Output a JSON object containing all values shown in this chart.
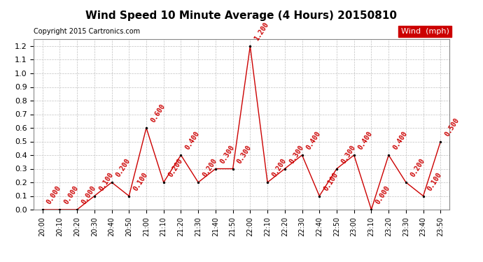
{
  "title": "Wind Speed 10 Minute Average (4 Hours) 20150810",
  "copyright_text": "Copyright 2015 Cartronics.com",
  "legend_label": "Wind  (mph)",
  "legend_bg": "#cc0000",
  "legend_fg": "#ffffff",
  "x_labels": [
    "20:00",
    "20:10",
    "20:20",
    "20:30",
    "20:40",
    "20:50",
    "21:00",
    "21:10",
    "21:20",
    "21:30",
    "21:40",
    "21:50",
    "22:00",
    "22:10",
    "22:20",
    "22:30",
    "22:40",
    "22:50",
    "23:00",
    "23:10",
    "23:20",
    "23:30",
    "23:40",
    "23:50"
  ],
  "y_values": [
    0.0,
    0.0,
    0.0,
    0.1,
    0.2,
    0.1,
    0.6,
    0.2,
    0.4,
    0.2,
    0.3,
    0.3,
    1.2,
    0.2,
    0.3,
    0.4,
    0.1,
    0.3,
    0.4,
    0.0,
    0.4,
    0.2,
    0.1,
    0.5
  ],
  "value_labels": [
    "0.000",
    "0.000",
    "0.000",
    "0.100",
    "0.200",
    "0.100",
    "0.600",
    "0.200",
    "0.400",
    "0.200",
    "0.300",
    "0.300",
    "1.200",
    "0.200",
    "0.300",
    "0.400",
    "0.100",
    "0.300",
    "0.400",
    "0.000",
    "0.400",
    "0.200",
    "0.100",
    "0.500"
  ],
  "line_color": "#cc0000",
  "marker_color": "#000000",
  "annotation_color": "#cc0000",
  "ylim": [
    0.0,
    1.25
  ],
  "yticks": [
    0.0,
    0.1,
    0.2,
    0.3,
    0.4,
    0.5,
    0.6,
    0.7,
    0.8,
    0.9,
    1.0,
    1.1,
    1.2
  ],
  "bg_color": "#ffffff",
  "grid_color": "#c0c0c0",
  "title_fontsize": 11,
  "annotation_fontsize": 7,
  "axis_label_fontsize": 7,
  "ytick_fontsize": 8,
  "copyright_fontsize": 7,
  "legend_fontsize": 8
}
